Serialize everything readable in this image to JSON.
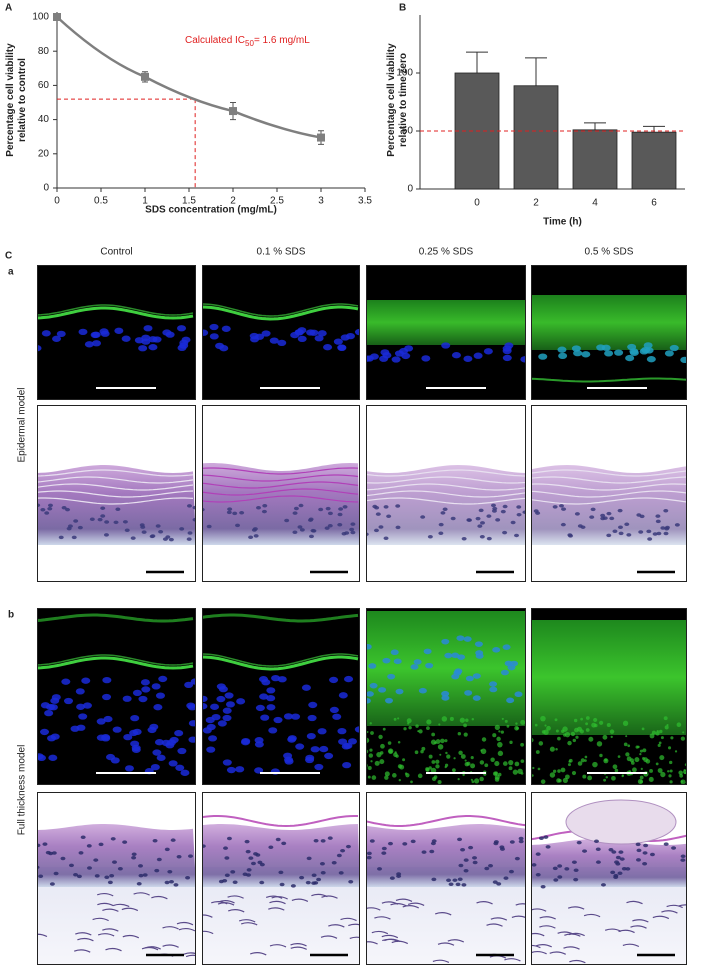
{
  "chart_data": [
    {
      "type": "line",
      "panel": "A",
      "xlabel": "SDS concentration  (mg/mL)",
      "ylabel": [
        "Percentage cell viability",
        "relative to control"
      ],
      "annotation": {
        "text": "Calculated IC",
        "sub": "50",
        "rest": "= 1.6 mg/mL"
      },
      "ic50_line": {
        "x": 1.57,
        "y": 52
      },
      "x": [
        0,
        1,
        2,
        3
      ],
      "series": [
        {
          "color": "#7f7f7f",
          "values": [
            100,
            65,
            45,
            29.5
          ],
          "errors": [
            2,
            3,
            5,
            4
          ]
        }
      ],
      "xlim": [
        0,
        3.5
      ],
      "xticks": [
        0,
        0.5,
        1,
        1.5,
        2,
        2.5,
        3,
        3.5
      ],
      "ylim": [
        0,
        100
      ],
      "yticks": [
        0,
        20,
        40,
        60,
        80,
        100
      ]
    },
    {
      "type": "bar",
      "panel": "B",
      "xlabel": "Time (h)",
      "ylabel": [
        "Percentage cell viability",
        "relative to time zero"
      ],
      "reference": 50,
      "categories": [
        "0",
        "2",
        "4",
        "6"
      ],
      "series": [
        {
          "color": "#595959",
          "values": [
            100,
            89,
            51,
            49
          ],
          "errors": [
            18,
            24,
            6,
            5
          ]
        }
      ],
      "ylim": [
        0,
        150
      ],
      "yticks": [
        0,
        50,
        100
      ]
    }
  ],
  "panel_c": {
    "label": "C",
    "columns": [
      "Control",
      "0.1 % SDS",
      "0.25 % SDS",
      "0.5 % SDS"
    ],
    "rows": [
      {
        "label": "a",
        "model": "Epidermal model"
      },
      {
        "label": "b",
        "model": "Full thickness model"
      }
    ]
  }
}
